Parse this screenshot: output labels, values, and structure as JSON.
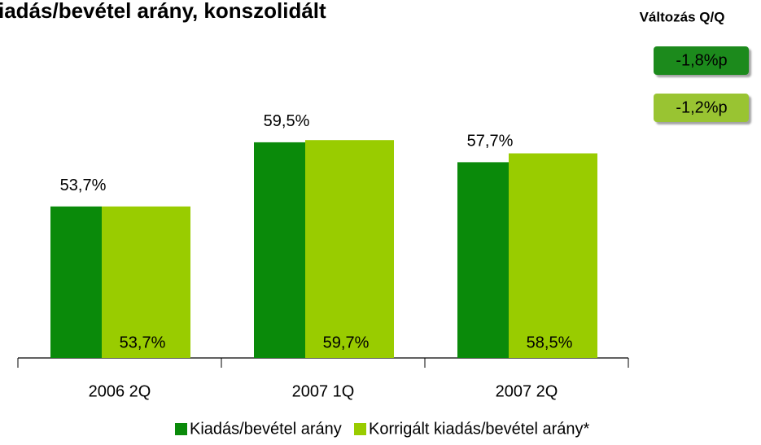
{
  "chart_data": {
    "type": "bar",
    "title": "iadás/bevétel arány, konszolidált",
    "categories": [
      "2006 2Q",
      "2007 1Q",
      "2007 2Q"
    ],
    "series": [
      {
        "name": "Kiadás/bevétel arány",
        "color": "#0a8a0a",
        "values": [
          53.7,
          59.5,
          57.7
        ],
        "value_labels": [
          "53,7%",
          "59,5%",
          "57,7%"
        ]
      },
      {
        "name": "Korrigált kiadás/bevétel arány*",
        "color": "#99cc00",
        "values": [
          53.7,
          59.7,
          58.5
        ],
        "value_labels": [
          "53,7%",
          "59,7%",
          "58,5%"
        ]
      }
    ],
    "ylim": [
      40,
      72
    ],
    "annotations": {
      "title": "Változás Q/Q",
      "items": [
        {
          "label": "-1,8%p",
          "color": "#1f8a1f"
        },
        {
          "label": "-1,2%p",
          "color": "#99c433"
        }
      ]
    }
  }
}
